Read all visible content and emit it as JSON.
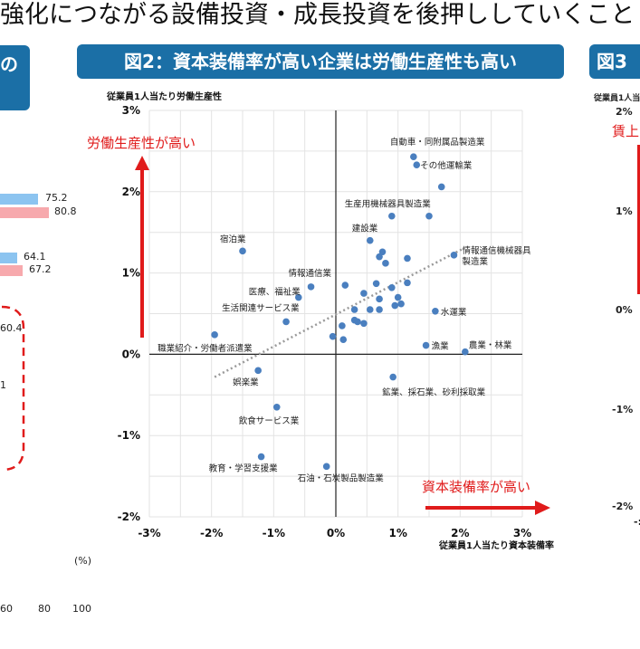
{
  "top_text": "強化につながる設備投資・成長投資を後押ししていくこと",
  "left_panel": {
    "badge": "の",
    "values": [
      "75.2",
      "80.8",
      "64.1",
      "67.2",
      "60.4",
      "1"
    ],
    "pct_unit": "(%)",
    "axis_ticks": [
      "60",
      "80",
      "100"
    ]
  },
  "right_panel": {
    "badge": "図3",
    "ylabel_partial": "従業員1人当",
    "annotation": "賃上",
    "ticks": [
      "2%",
      "1%",
      "0%",
      "-1%",
      "-2%"
    ],
    "xtick_partial": "-:"
  },
  "chart_data": {
    "type": "scatter",
    "title": "図2：資本装備率が高い企業は労働生産性も高い",
    "xlabel": "従業員1人当たり資本装備率",
    "ylabel": "従業員1人当たり労働生産性",
    "xlim": [
      -3,
      3
    ],
    "ylim": [
      -2,
      3
    ],
    "xticks": [
      "-3%",
      "-2%",
      "-1%",
      "0%",
      "1%",
      "2%",
      "3%"
    ],
    "yticks": [
      "3%",
      "2%",
      "1%",
      "0%",
      "-1%",
      "-2%"
    ],
    "grid": true,
    "annotation_y": "労働生産性が高い",
    "annotation_x": "資本装備率が高い",
    "trendline": [
      [
        -1.95,
        -0.28
      ],
      [
        2.05,
        1.3
      ]
    ],
    "points": [
      {
        "x": 1.25,
        "y": 2.43,
        "label": "自動車・同附属品製造業"
      },
      {
        "x": 1.3,
        "y": 2.33,
        "label": "その他運輸業"
      },
      {
        "x": 1.7,
        "y": 2.06,
        "label": ""
      },
      {
        "x": 0.9,
        "y": 1.7,
        "label": "生産用機械器具製造業"
      },
      {
        "x": 1.5,
        "y": 1.7,
        "label": ""
      },
      {
        "x": 0.55,
        "y": 1.4,
        "label": "建設業"
      },
      {
        "x": -1.5,
        "y": 1.27,
        "label": "宿泊業"
      },
      {
        "x": 0.7,
        "y": 1.2,
        "label": ""
      },
      {
        "x": 0.75,
        "y": 1.26,
        "label": ""
      },
      {
        "x": 0.8,
        "y": 1.12,
        "label": ""
      },
      {
        "x": 1.15,
        "y": 1.18,
        "label": ""
      },
      {
        "x": 1.9,
        "y": 1.22,
        "label": "情報通信機械器具製造業"
      },
      {
        "x": -0.4,
        "y": 0.83,
        "label": "情報通信業"
      },
      {
        "x": -0.6,
        "y": 0.7,
        "label": "医療、福祉業"
      },
      {
        "x": 0.15,
        "y": 0.85,
        "label": ""
      },
      {
        "x": 0.45,
        "y": 0.75,
        "label": ""
      },
      {
        "x": 0.65,
        "y": 0.87,
        "label": ""
      },
      {
        "x": 0.9,
        "y": 0.82,
        "label": ""
      },
      {
        "x": 1.15,
        "y": 0.88,
        "label": ""
      },
      {
        "x": 1.0,
        "y": 0.7,
        "label": ""
      },
      {
        "x": 0.95,
        "y": 0.6,
        "label": ""
      },
      {
        "x": 1.05,
        "y": 0.62,
        "label": ""
      },
      {
        "x": 0.7,
        "y": 0.68,
        "label": ""
      },
      {
        "x": 0.55,
        "y": 0.55,
        "label": ""
      },
      {
        "x": 0.7,
        "y": 0.55,
        "label": ""
      },
      {
        "x": 0.3,
        "y": 0.55,
        "label": ""
      },
      {
        "x": 0.3,
        "y": 0.42,
        "label": ""
      },
      {
        "x": 0.35,
        "y": 0.4,
        "label": ""
      },
      {
        "x": 0.45,
        "y": 0.38,
        "label": ""
      },
      {
        "x": 0.1,
        "y": 0.35,
        "label": ""
      },
      {
        "x": -0.05,
        "y": 0.22,
        "label": ""
      },
      {
        "x": 0.12,
        "y": 0.18,
        "label": ""
      },
      {
        "x": -0.8,
        "y": 0.4,
        "label": "生活関連サービス業"
      },
      {
        "x": 1.6,
        "y": 0.53,
        "label": "水運業"
      },
      {
        "x": -1.95,
        "y": 0.24,
        "label": "職業紹介・労働者派遣業"
      },
      {
        "x": 1.45,
        "y": 0.11,
        "label": "漁業"
      },
      {
        "x": 2.08,
        "y": 0.03,
        "label": "農業・林業"
      },
      {
        "x": -1.25,
        "y": -0.2,
        "label": "娯楽業"
      },
      {
        "x": 0.92,
        "y": -0.28,
        "label": "鉱業、採石業、砂利採取業"
      },
      {
        "x": -0.95,
        "y": -0.65,
        "label": "飲食サービス業"
      },
      {
        "x": -1.2,
        "y": -1.26,
        "label": "教育・学習支援業"
      },
      {
        "x": -0.15,
        "y": -1.38,
        "label": "石油・石炭製品製造業"
      }
    ]
  }
}
